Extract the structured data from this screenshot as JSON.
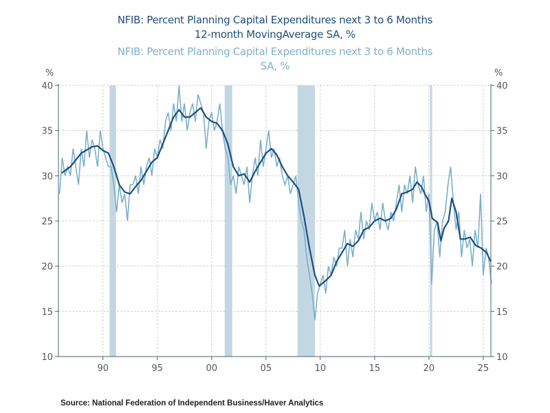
{
  "chart_data": {
    "type": "line",
    "title_lines": [
      "NFIB: Percent Planning Capital Expenditures next 3 to 6 Months",
      "12-month MovingAverage     SA, %"
    ],
    "subtitle_lines": [
      "NFIB: Percent Planning Capital Expenditures next 3 to 6 Months",
      "SA, %"
    ],
    "ylabel_left": "%",
    "ylabel_right": "%",
    "ylim": [
      10,
      40
    ],
    "yticks": [
      10,
      15,
      20,
      25,
      30,
      35,
      40
    ],
    "xlim": [
      1985.9,
      2025.7
    ],
    "xticks": [
      {
        "x": 1990,
        "label": "90"
      },
      {
        "x": 1995,
        "label": "95"
      },
      {
        "x": 2000,
        "label": "00"
      },
      {
        "x": 2005,
        "label": "05"
      },
      {
        "x": 2010,
        "label": "10"
      },
      {
        "x": 2015,
        "label": "15"
      },
      {
        "x": 2020,
        "label": "20"
      },
      {
        "x": 2025,
        "label": "25"
      }
    ],
    "grid": true,
    "recessions": [
      [
        1990.6,
        1991.2
      ],
      [
        2001.2,
        2001.9
      ],
      [
        2007.9,
        2009.5
      ],
      [
        2020.1,
        2020.3
      ]
    ],
    "colors": {
      "moving_average": "#1a4f80",
      "raw": "#7aafc8",
      "recession": "#c3d7e2",
      "grid": "#d0d0d0",
      "axis": "#4a6070"
    },
    "series": [
      {
        "key": "raw",
        "start": 1986.0,
        "step": 0.25,
        "values": [
          28,
          32,
          30,
          31,
          30,
          33,
          31,
          29,
          33,
          31,
          35,
          32,
          34,
          33,
          31,
          35,
          33,
          32,
          31,
          31,
          29,
          26,
          29,
          27,
          28,
          25,
          29,
          29,
          30,
          28,
          31,
          29,
          31,
          32,
          30,
          33,
          32,
          34,
          33,
          36,
          37,
          35,
          38,
          36,
          40,
          36,
          38,
          35,
          37,
          38,
          36,
          39,
          38,
          37,
          33,
          36,
          37,
          35,
          36,
          38,
          35,
          33,
          32,
          29,
          30,
          28,
          31,
          30,
          29,
          31,
          27,
          30,
          32,
          30,
          34,
          31,
          33,
          35,
          32,
          33,
          31,
          32,
          30,
          29,
          30,
          28,
          29,
          30,
          27,
          25,
          24,
          21,
          19,
          17,
          14,
          17,
          18,
          19,
          17,
          20,
          19,
          21,
          20,
          22,
          22,
          24,
          20,
          23,
          21,
          24,
          23,
          26,
          23,
          25,
          24,
          27,
          25,
          26,
          24,
          27,
          25,
          24,
          26,
          25,
          27,
          29,
          26,
          29,
          28,
          30,
          27,
          31,
          29,
          28,
          30,
          26,
          28,
          18,
          24,
          25,
          21,
          25,
          26,
          29,
          31,
          27,
          24,
          26,
          21,
          24,
          22,
          23,
          20,
          24,
          22,
          28,
          19,
          22,
          21,
          18
        ]
      },
      {
        "key": "moving_average",
        "points": [
          [
            1986.2,
            30.3
          ],
          [
            1987,
            31
          ],
          [
            1988,
            32.5
          ],
          [
            1989,
            33.2
          ],
          [
            1989.5,
            33.3
          ],
          [
            1990,
            32.8
          ],
          [
            1990.5,
            32.5
          ],
          [
            1991,
            31
          ],
          [
            1991.5,
            29
          ],
          [
            1992,
            28.2
          ],
          [
            1992.5,
            28
          ],
          [
            1993,
            28.8
          ],
          [
            1993.5,
            29.5
          ],
          [
            1994,
            30.5
          ],
          [
            1994.5,
            31.5
          ],
          [
            1995,
            32
          ],
          [
            1995.5,
            33.5
          ],
          [
            1996,
            35
          ],
          [
            1996.5,
            36.5
          ],
          [
            1997,
            37.3
          ],
          [
            1997.5,
            36.5
          ],
          [
            1998,
            36.5
          ],
          [
            1998.5,
            37
          ],
          [
            1999,
            37.5
          ],
          [
            1999.5,
            36.5
          ],
          [
            2000,
            36
          ],
          [
            2000.5,
            35.8
          ],
          [
            2001,
            35
          ],
          [
            2001.5,
            33.5
          ],
          [
            2002,
            31
          ],
          [
            2002.5,
            30
          ],
          [
            2003,
            30.2
          ],
          [
            2003.5,
            29.3
          ],
          [
            2004,
            30.5
          ],
          [
            2004.5,
            31.5
          ],
          [
            2005,
            32.5
          ],
          [
            2005.5,
            33
          ],
          [
            2006,
            32.3
          ],
          [
            2006.5,
            31
          ],
          [
            2007,
            30
          ],
          [
            2007.5,
            29.3
          ],
          [
            2008,
            28.5
          ],
          [
            2008.5,
            25.5
          ],
          [
            2009,
            22
          ],
          [
            2009.5,
            19
          ],
          [
            2009.9,
            17.8
          ],
          [
            2010.5,
            18.4
          ],
          [
            2011,
            19
          ],
          [
            2011.5,
            20.5
          ],
          [
            2012,
            21.5
          ],
          [
            2012.5,
            22.5
          ],
          [
            2013,
            22.2
          ],
          [
            2013.5,
            22.8
          ],
          [
            2014,
            24
          ],
          [
            2014.5,
            24.3
          ],
          [
            2015,
            25
          ],
          [
            2015.5,
            25.3
          ],
          [
            2016,
            25
          ],
          [
            2016.5,
            25.3
          ],
          [
            2017,
            26.3
          ],
          [
            2017.5,
            28
          ],
          [
            2018,
            28.2
          ],
          [
            2018.5,
            28.5
          ],
          [
            2018.9,
            29.3
          ],
          [
            2019.3,
            28.8
          ],
          [
            2019.7,
            27.8
          ],
          [
            2020,
            27.2
          ],
          [
            2020.3,
            25.3
          ],
          [
            2020.8,
            24.8
          ],
          [
            2021.1,
            22.8
          ],
          [
            2021.4,
            24.2
          ],
          [
            2021.8,
            25
          ],
          [
            2022.1,
            27.5
          ],
          [
            2022.5,
            26
          ],
          [
            2022.9,
            23
          ],
          [
            2023.3,
            23
          ],
          [
            2023.8,
            23.2
          ],
          [
            2024.3,
            22.3
          ],
          [
            2024.8,
            22
          ],
          [
            2025.3,
            21.5
          ],
          [
            2025.7,
            20.5
          ]
        ]
      }
    ],
    "source": "Source:  National Federation of Independent Business/Haver Analytics"
  }
}
